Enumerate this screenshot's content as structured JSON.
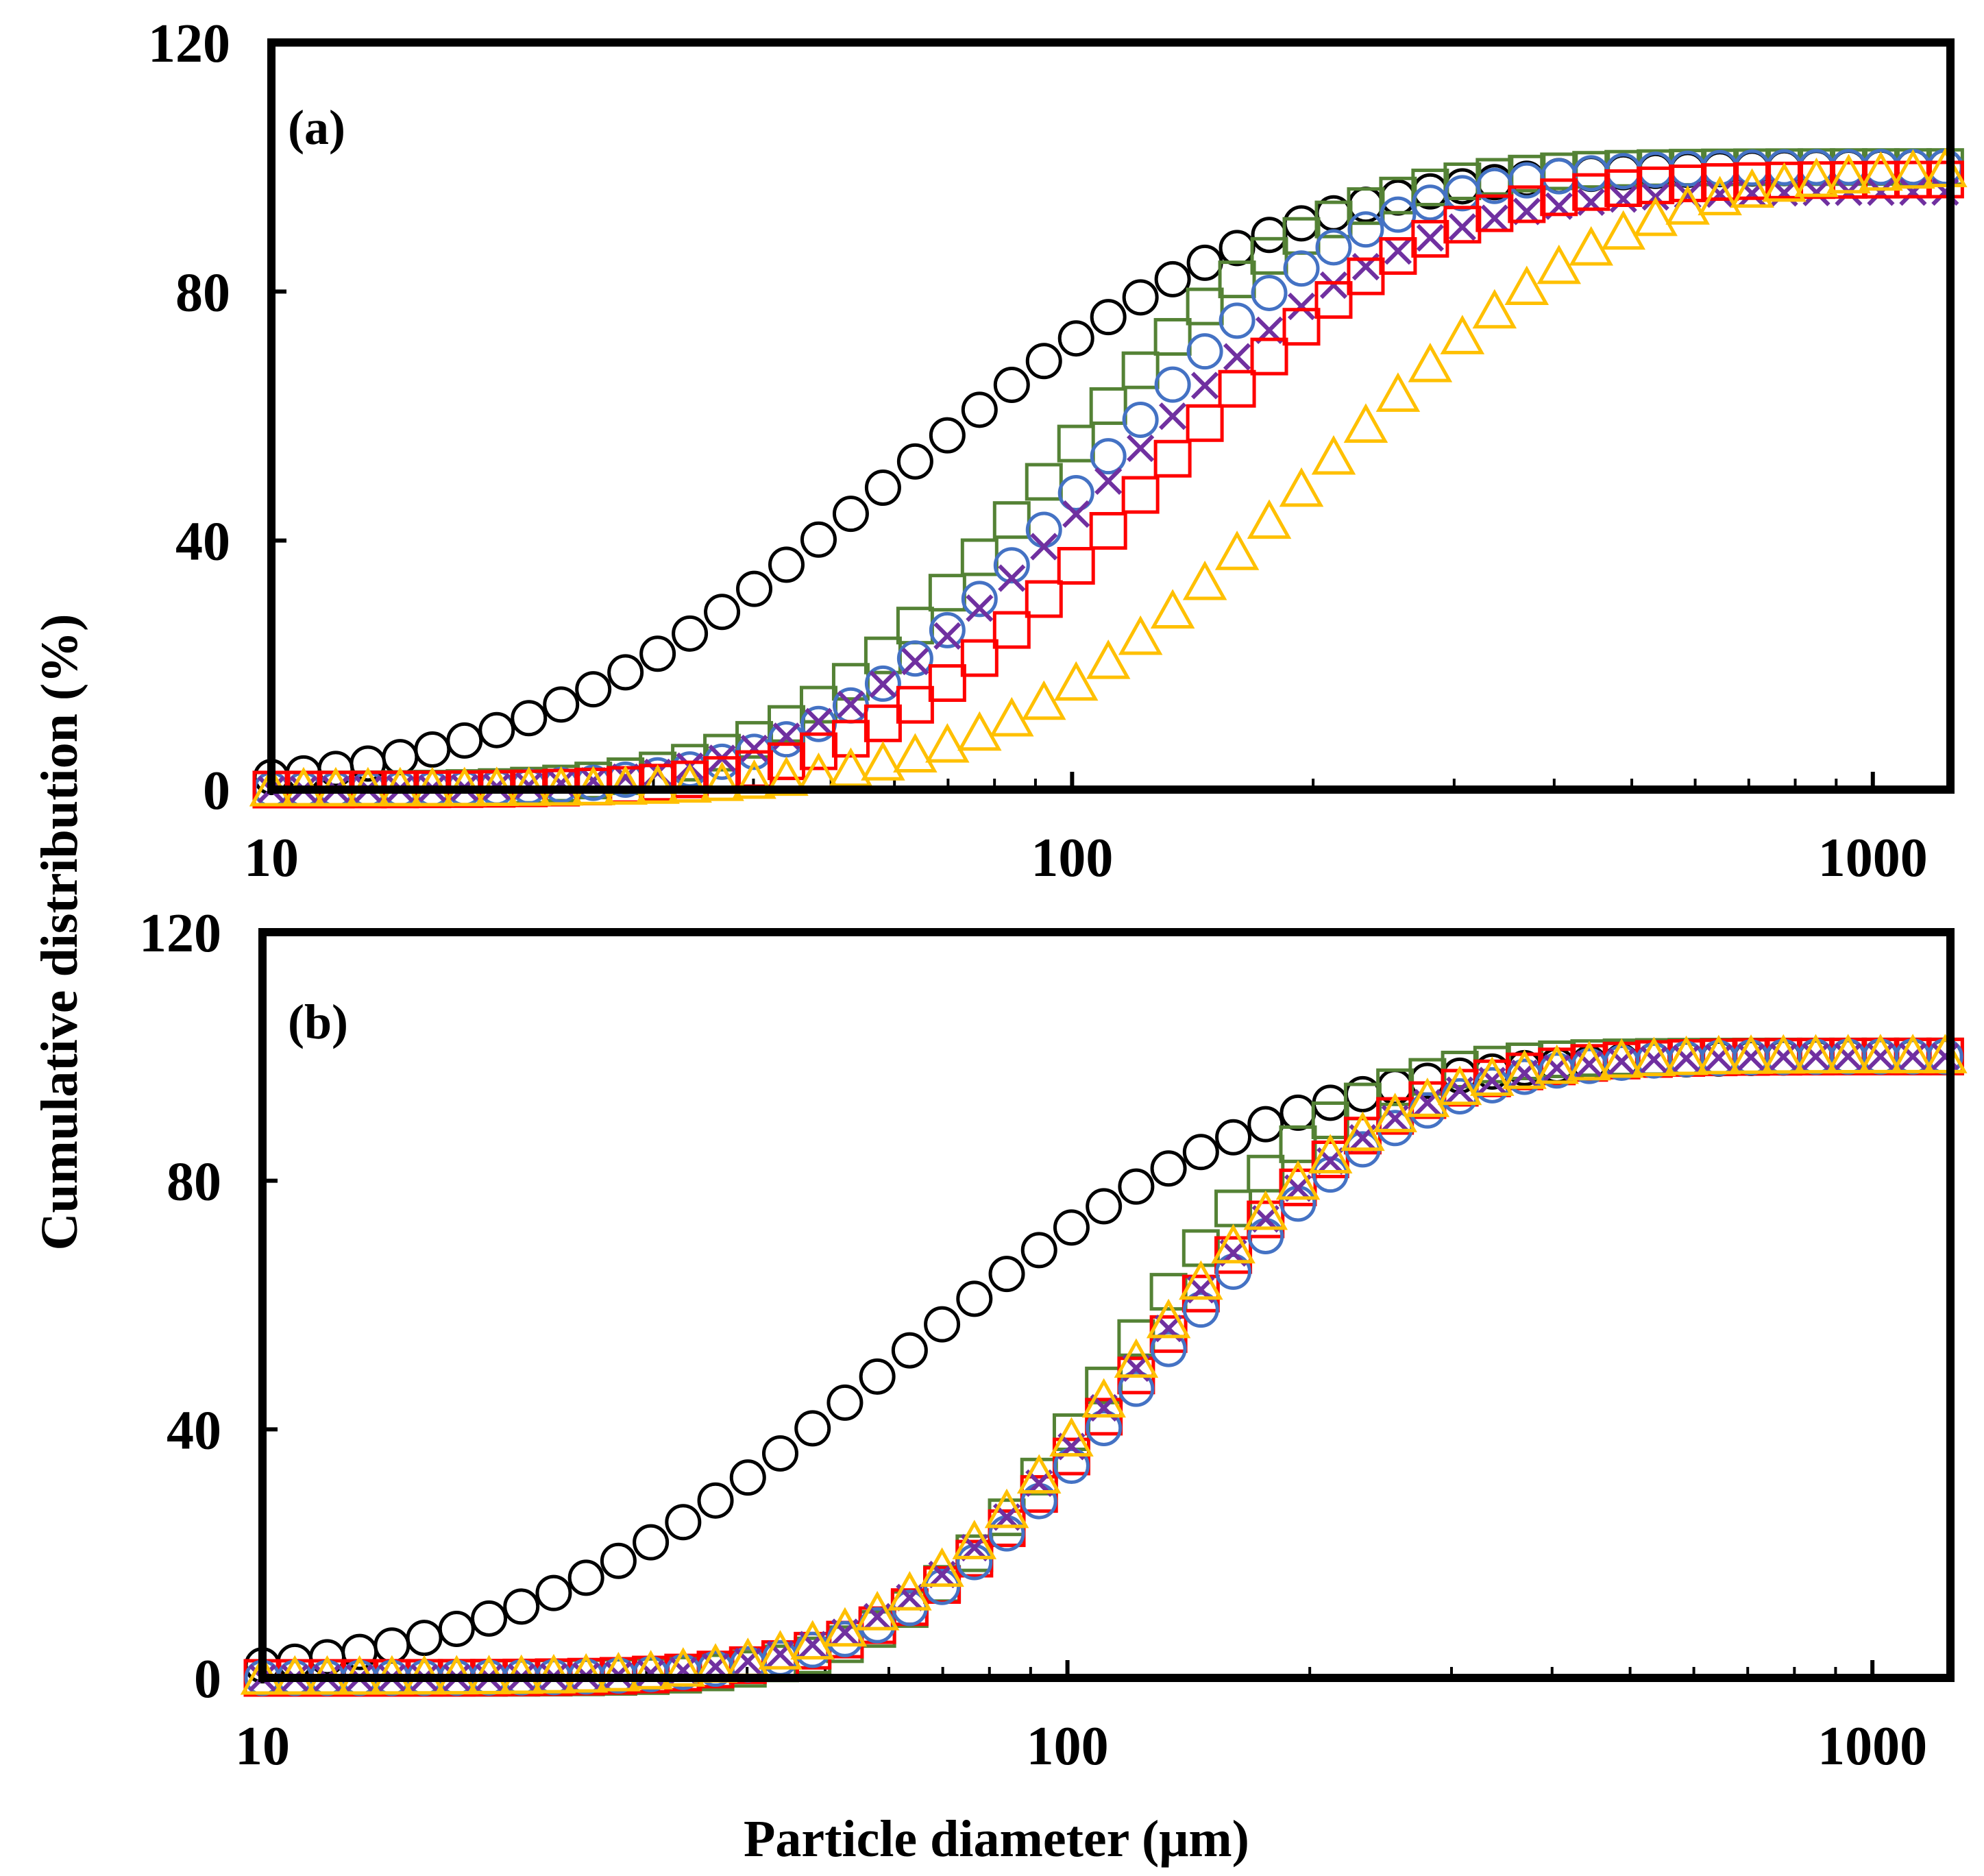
{
  "chart_data": [
    {
      "type": "scatter",
      "panel": "(a)",
      "xscale": "log",
      "xlim": [
        10,
        1250
      ],
      "ylim": [
        0,
        120
      ],
      "xticks": [
        "10",
        "100",
        "1000"
      ],
      "yticks": [
        "0",
        "40",
        "80",
        "120"
      ],
      "series": [
        {
          "name": "black",
          "marker": "circle",
          "color": "#000000",
          "d50": 60,
          "width": 0.38,
          "max": 100
        },
        {
          "name": "green",
          "marker": "square",
          "color": "#548235",
          "d50": 93,
          "width": 0.26,
          "max": 100
        },
        {
          "name": "blue",
          "marker": "circle",
          "color": "#4472C4",
          "d50": 105,
          "width": 0.27,
          "max": 100
        },
        {
          "name": "purple",
          "marker": "x",
          "color": "#7030A0",
          "d50": 108,
          "width": 0.29,
          "max": 96
        },
        {
          "name": "red",
          "marker": "square",
          "color": "#FF0000",
          "d50": 125,
          "width": 0.27,
          "max": 98
        },
        {
          "name": "yellow",
          "marker": "triangle",
          "color": "#FFC000",
          "d50": 200,
          "width": 0.31,
          "max": 100
        }
      ]
    },
    {
      "type": "scatter",
      "panel": "(b)",
      "xscale": "log",
      "xlim": [
        10,
        1250
      ],
      "ylim": [
        0,
        120
      ],
      "xticks": [
        "10",
        "100",
        "1000"
      ],
      "yticks": [
        "0",
        "40",
        "80",
        "120"
      ],
      "series": [
        {
          "name": "black",
          "marker": "circle",
          "color": "#000000",
          "d50": 60,
          "width": 0.38,
          "max": 100
        },
        {
          "name": "green",
          "marker": "square",
          "color": "#548235",
          "d50": 115,
          "width": 0.21,
          "max": 100
        },
        {
          "name": "red",
          "marker": "square",
          "color": "#FF0000",
          "d50": 124,
          "width": 0.24,
          "max": 100
        },
        {
          "name": "blue",
          "marker": "circle",
          "color": "#4472C4",
          "d50": 128,
          "width": 0.25,
          "max": 100
        },
        {
          "name": "purple",
          "marker": "x",
          "color": "#7030A0",
          "d50": 122,
          "width": 0.25,
          "max": 100
        },
        {
          "name": "yellow",
          "marker": "triangle",
          "color": "#FFC000",
          "d50": 120,
          "width": 0.25,
          "max": 100
        }
      ]
    }
  ],
  "labels": {
    "panel_a": "(a)",
    "panel_b": "(b)",
    "xlabel": "Particle diameter (μm)",
    "ylabel": "Cumulative distribution (%)"
  }
}
